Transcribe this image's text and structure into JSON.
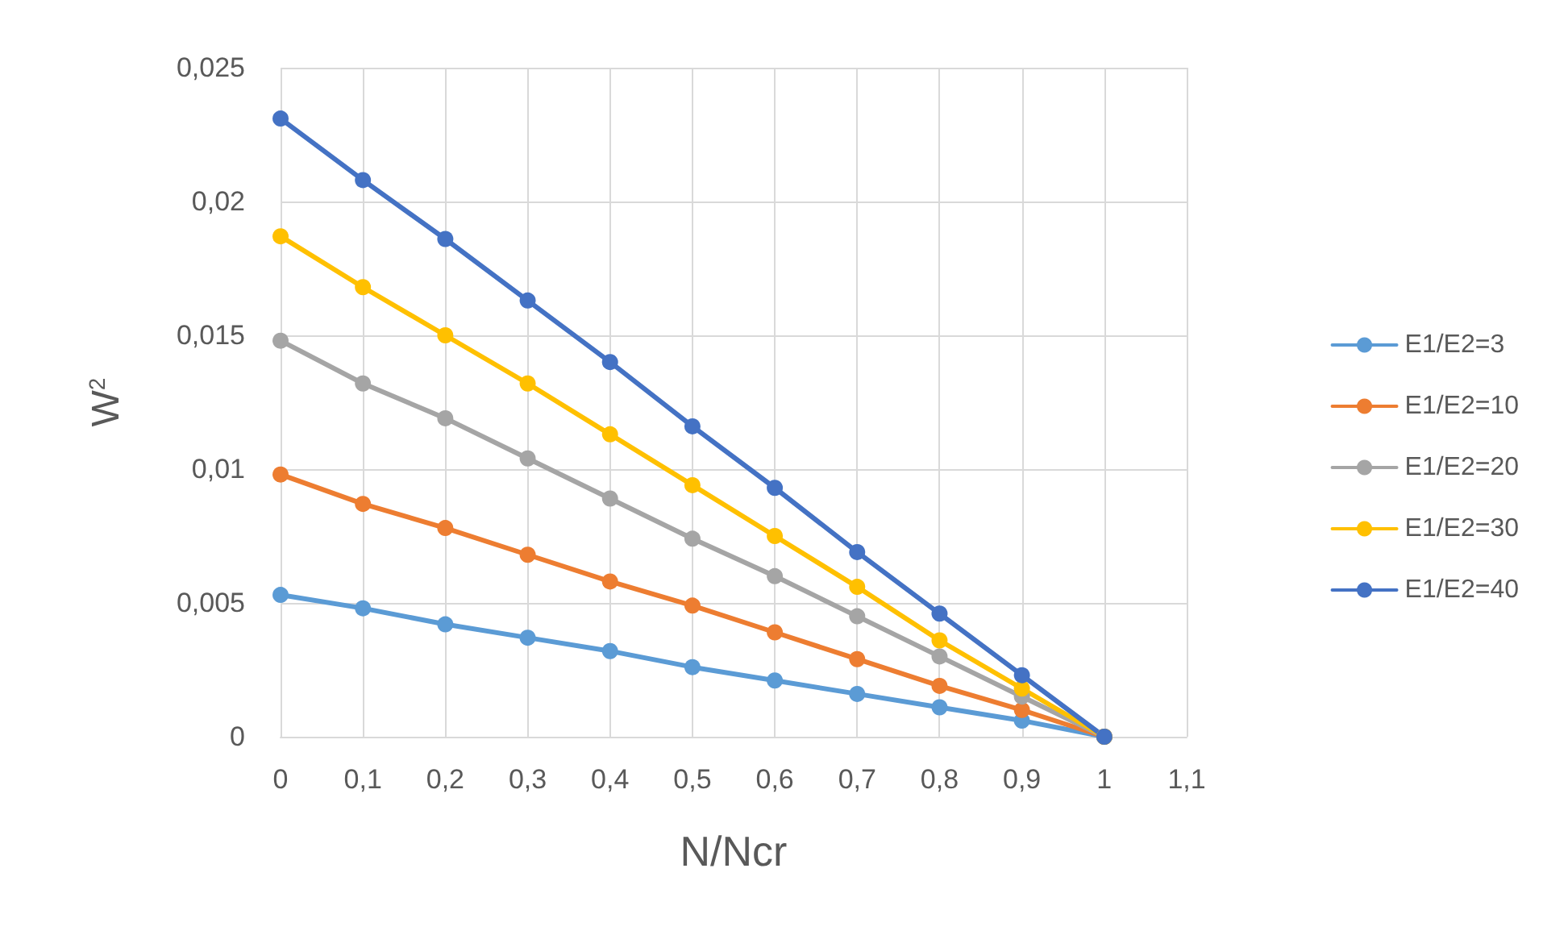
{
  "chart_data": {
    "type": "line",
    "xlabel": "N/Ncr",
    "ylabel": "W$^{2}$",
    "x": [
      0,
      0.1,
      0.2,
      0.3,
      0.4,
      0.5,
      0.6,
      0.7,
      0.8,
      0.9,
      1
    ],
    "series": [
      {
        "name": "E1/E2=3",
        "color": "#5b9bd5",
        "values": [
          0.0053,
          0.0048,
          0.0042,
          0.0037,
          0.0032,
          0.0026,
          0.0021,
          0.0016,
          0.0011,
          0.0006,
          0
        ]
      },
      {
        "name": "E1/E2=10",
        "color": "#ed7d31",
        "values": [
          0.0098,
          0.0087,
          0.0078,
          0.0068,
          0.0058,
          0.0049,
          0.0039,
          0.0029,
          0.0019,
          0.001,
          0
        ]
      },
      {
        "name": "E1/E2=20",
        "color": "#a5a5a5",
        "values": [
          0.0148,
          0.0132,
          0.0119,
          0.0104,
          0.0089,
          0.0074,
          0.006,
          0.0045,
          0.003,
          0.0015,
          0
        ]
      },
      {
        "name": "E1/E2=30",
        "color": "#ffc000",
        "values": [
          0.0187,
          0.0168,
          0.015,
          0.0132,
          0.0113,
          0.0094,
          0.0075,
          0.0056,
          0.0036,
          0.0018,
          0
        ]
      },
      {
        "name": "E1/E2=40",
        "color": "#4472c4",
        "values": [
          0.0231,
          0.0208,
          0.0186,
          0.0163,
          0.014,
          0.0116,
          0.0093,
          0.0069,
          0.0046,
          0.0023,
          0
        ]
      }
    ],
    "xlim": [
      0,
      1.1
    ],
    "xticks": [
      0,
      {
        "value": 0.1,
        "label": "0,1"
      },
      {
        "value": 0.2,
        "label": "0,2"
      },
      {
        "value": 0.3,
        "label": "0,3"
      },
      {
        "value": 0.4,
        "label": "0,4"
      },
      {
        "value": 0.5,
        "label": "0,5"
      },
      {
        "value": 0.6,
        "label": "0,6"
      },
      {
        "value": 0.7,
        "label": "0,7"
      },
      {
        "value": 0.8,
        "label": "0,8"
      },
      {
        "value": 0.9,
        "label": "0,9"
      },
      1,
      {
        "value": 1.1,
        "label": "1,1"
      }
    ],
    "ylim": [
      0,
      0.025
    ],
    "yticks": [
      0,
      {
        "value": 0.005,
        "label": "0,005"
      },
      {
        "value": 0.01,
        "label": "0,01"
      },
      {
        "value": 0.015,
        "label": "0,015"
      },
      {
        "value": 0.02,
        "label": "0,02"
      },
      {
        "value": 0.025,
        "label": "0,025"
      }
    ],
    "grid": true,
    "legend": "right",
    "marker": "circle",
    "line_style": "solid"
  }
}
